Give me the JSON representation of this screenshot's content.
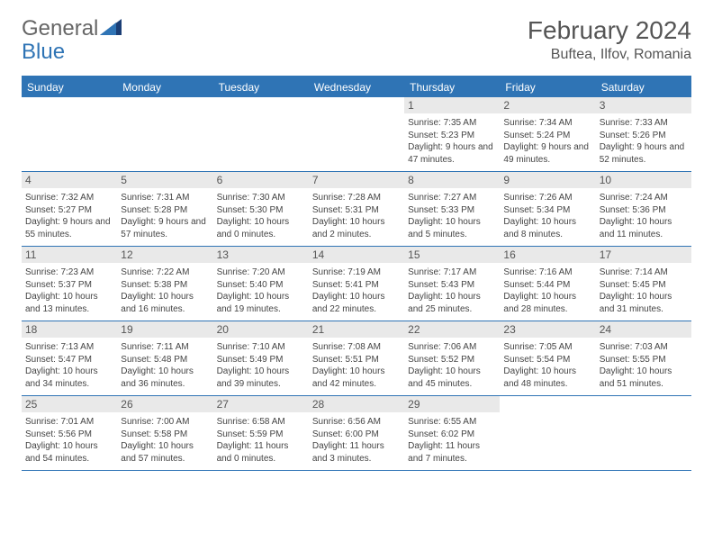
{
  "brand": {
    "general": "General",
    "blue": "Blue"
  },
  "header": {
    "month_title": "February 2024",
    "location": "Buftea, Ilfov, Romania"
  },
  "colors": {
    "accent": "#2f74b5",
    "header_text": "#ffffff",
    "day_num_bg": "#e9e9e9",
    "text": "#444444",
    "title": "#555555",
    "border": "#2f74b5"
  },
  "daysOfWeek": [
    "Sunday",
    "Monday",
    "Tuesday",
    "Wednesday",
    "Thursday",
    "Friday",
    "Saturday"
  ],
  "weeks": [
    [
      {
        "blank": true
      },
      {
        "blank": true
      },
      {
        "blank": true
      },
      {
        "blank": true
      },
      {
        "num": "1",
        "sunrise": "7:35 AM",
        "sunset": "5:23 PM",
        "daylight": "9 hours and 47 minutes."
      },
      {
        "num": "2",
        "sunrise": "7:34 AM",
        "sunset": "5:24 PM",
        "daylight": "9 hours and 49 minutes."
      },
      {
        "num": "3",
        "sunrise": "7:33 AM",
        "sunset": "5:26 PM",
        "daylight": "9 hours and 52 minutes."
      }
    ],
    [
      {
        "num": "4",
        "sunrise": "7:32 AM",
        "sunset": "5:27 PM",
        "daylight": "9 hours and 55 minutes."
      },
      {
        "num": "5",
        "sunrise": "7:31 AM",
        "sunset": "5:28 PM",
        "daylight": "9 hours and 57 minutes."
      },
      {
        "num": "6",
        "sunrise": "7:30 AM",
        "sunset": "5:30 PM",
        "daylight": "10 hours and 0 minutes."
      },
      {
        "num": "7",
        "sunrise": "7:28 AM",
        "sunset": "5:31 PM",
        "daylight": "10 hours and 2 minutes."
      },
      {
        "num": "8",
        "sunrise": "7:27 AM",
        "sunset": "5:33 PM",
        "daylight": "10 hours and 5 minutes."
      },
      {
        "num": "9",
        "sunrise": "7:26 AM",
        "sunset": "5:34 PM",
        "daylight": "10 hours and 8 minutes."
      },
      {
        "num": "10",
        "sunrise": "7:24 AM",
        "sunset": "5:36 PM",
        "daylight": "10 hours and 11 minutes."
      }
    ],
    [
      {
        "num": "11",
        "sunrise": "7:23 AM",
        "sunset": "5:37 PM",
        "daylight": "10 hours and 13 minutes."
      },
      {
        "num": "12",
        "sunrise": "7:22 AM",
        "sunset": "5:38 PM",
        "daylight": "10 hours and 16 minutes."
      },
      {
        "num": "13",
        "sunrise": "7:20 AM",
        "sunset": "5:40 PM",
        "daylight": "10 hours and 19 minutes."
      },
      {
        "num": "14",
        "sunrise": "7:19 AM",
        "sunset": "5:41 PM",
        "daylight": "10 hours and 22 minutes."
      },
      {
        "num": "15",
        "sunrise": "7:17 AM",
        "sunset": "5:43 PM",
        "daylight": "10 hours and 25 minutes."
      },
      {
        "num": "16",
        "sunrise": "7:16 AM",
        "sunset": "5:44 PM",
        "daylight": "10 hours and 28 minutes."
      },
      {
        "num": "17",
        "sunrise": "7:14 AM",
        "sunset": "5:45 PM",
        "daylight": "10 hours and 31 minutes."
      }
    ],
    [
      {
        "num": "18",
        "sunrise": "7:13 AM",
        "sunset": "5:47 PM",
        "daylight": "10 hours and 34 minutes."
      },
      {
        "num": "19",
        "sunrise": "7:11 AM",
        "sunset": "5:48 PM",
        "daylight": "10 hours and 36 minutes."
      },
      {
        "num": "20",
        "sunrise": "7:10 AM",
        "sunset": "5:49 PM",
        "daylight": "10 hours and 39 minutes."
      },
      {
        "num": "21",
        "sunrise": "7:08 AM",
        "sunset": "5:51 PM",
        "daylight": "10 hours and 42 minutes."
      },
      {
        "num": "22",
        "sunrise": "7:06 AM",
        "sunset": "5:52 PM",
        "daylight": "10 hours and 45 minutes."
      },
      {
        "num": "23",
        "sunrise": "7:05 AM",
        "sunset": "5:54 PM",
        "daylight": "10 hours and 48 minutes."
      },
      {
        "num": "24",
        "sunrise": "7:03 AM",
        "sunset": "5:55 PM",
        "daylight": "10 hours and 51 minutes."
      }
    ],
    [
      {
        "num": "25",
        "sunrise": "7:01 AM",
        "sunset": "5:56 PM",
        "daylight": "10 hours and 54 minutes."
      },
      {
        "num": "26",
        "sunrise": "7:00 AM",
        "sunset": "5:58 PM",
        "daylight": "10 hours and 57 minutes."
      },
      {
        "num": "27",
        "sunrise": "6:58 AM",
        "sunset": "5:59 PM",
        "daylight": "11 hours and 0 minutes."
      },
      {
        "num": "28",
        "sunrise": "6:56 AM",
        "sunset": "6:00 PM",
        "daylight": "11 hours and 3 minutes."
      },
      {
        "num": "29",
        "sunrise": "6:55 AM",
        "sunset": "6:02 PM",
        "daylight": "11 hours and 7 minutes."
      },
      {
        "blank": true
      },
      {
        "blank": true
      }
    ]
  ],
  "labels": {
    "sunrise": "Sunrise:",
    "sunset": "Sunset:",
    "daylight": "Daylight:"
  }
}
